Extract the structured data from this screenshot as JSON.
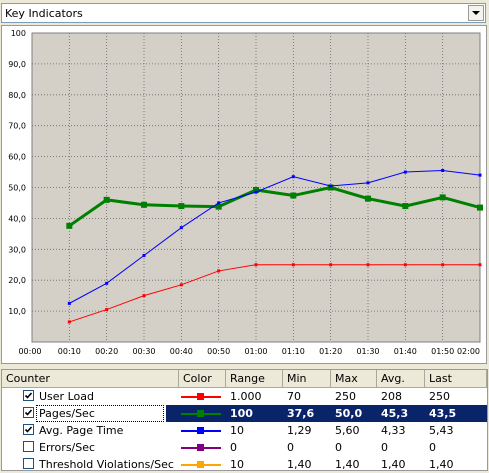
{
  "combo": {
    "value": "Key Indicators"
  },
  "chart_data": {
    "type": "line",
    "xlabel": "",
    "ylabel": "",
    "x": [
      "00:00",
      "00:10",
      "00:20",
      "00:30",
      "00:40",
      "00:50",
      "01:00",
      "01:10",
      "01:20",
      "01:30",
      "01:40",
      "01:50",
      "02:00"
    ],
    "y_ticks": [
      "100",
      "90,0",
      "80,0",
      "70,0",
      "60,0",
      "50,0",
      "40,0",
      "30,0",
      "20,0",
      "10,0"
    ],
    "ylim": [
      0,
      100
    ],
    "grid": true,
    "background": "#d4d0c8",
    "series": [
      {
        "name": "User Load",
        "color": "#ff0000",
        "width": 1,
        "values": [
          null,
          6.5,
          10.5,
          15,
          18.5,
          23,
          25,
          25,
          25,
          25,
          25,
          25,
          25
        ]
      },
      {
        "name": "Pages/Sec",
        "color": "#008000",
        "width": 3,
        "values": [
          null,
          37.6,
          46,
          44.4,
          44,
          43.8,
          49.2,
          47.4,
          50,
          46.4,
          44,
          46.8,
          43.5
        ]
      },
      {
        "name": "Avg. Page Time",
        "color": "#0000ff",
        "width": 1,
        "values": [
          null,
          12.5,
          19,
          28,
          37,
          45,
          48.5,
          53.5,
          50.5,
          51.5,
          55,
          55.5,
          54
        ]
      }
    ]
  },
  "table": {
    "headers": [
      "Counter",
      "Color",
      "Range",
      "Min",
      "Max",
      "Avg.",
      "Last"
    ],
    "rows": [
      {
        "checked": true,
        "name": "User Load",
        "color": "#ff0000",
        "range": "1.000",
        "min": "70",
        "max": "250",
        "avg": "208",
        "last": "250",
        "selected": false
      },
      {
        "checked": true,
        "name": "Pages/Sec",
        "color": "#008000",
        "range": "100",
        "min": "37,6",
        "max": "50,0",
        "avg": "45,3",
        "last": "43,5",
        "selected": true
      },
      {
        "checked": true,
        "name": "Avg. Page Time",
        "color": "#0000ff",
        "range": "10",
        "min": "1,29",
        "max": "5,60",
        "avg": "4,33",
        "last": "5,43",
        "selected": false
      },
      {
        "checked": false,
        "name": "Errors/Sec",
        "color": "#800080",
        "range": "0",
        "min": "0",
        "max": "0",
        "avg": "0",
        "last": "0",
        "selected": false
      },
      {
        "checked": false,
        "name": "Threshold Violations/Sec",
        "color": "#ffa500",
        "range": "10",
        "min": "1,40",
        "max": "1,40",
        "avg": "1,40",
        "last": "1,40",
        "selected": false
      }
    ]
  }
}
